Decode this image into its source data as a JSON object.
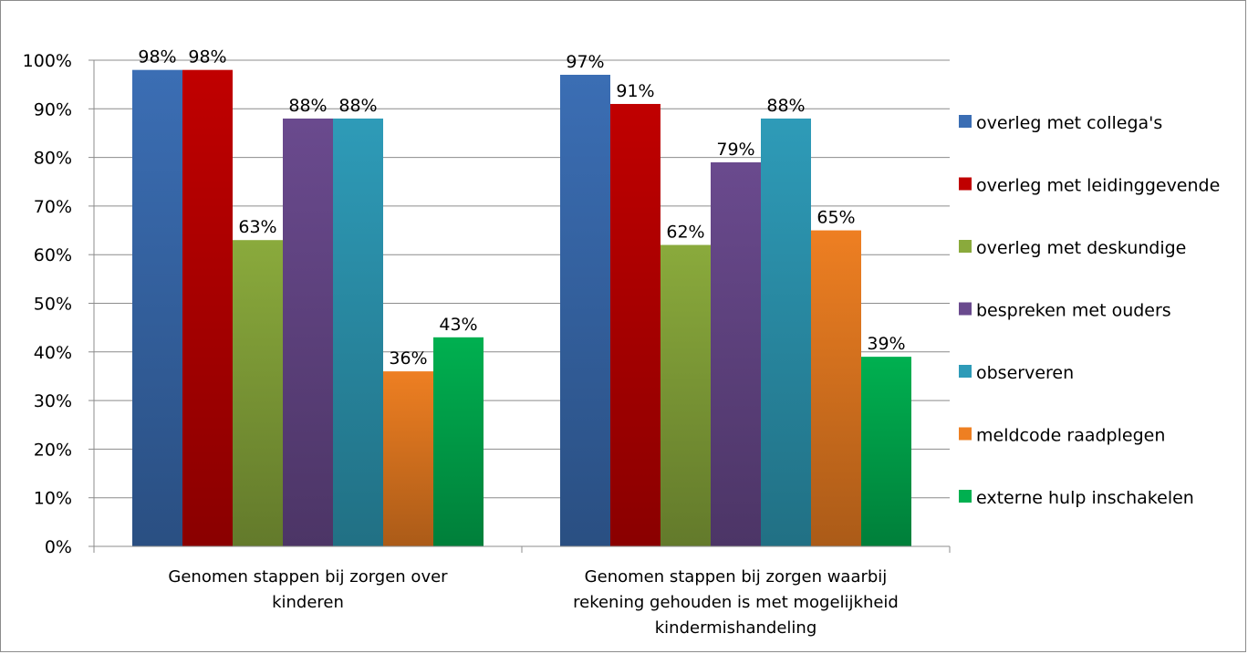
{
  "chart_data": {
    "type": "bar",
    "categories": [
      [
        "Genomen stappen bij zorgen over",
        "kinderen"
      ],
      [
        "Genomen stappen bij zorgen waarbij",
        "rekening gehouden is met mogelijkheid",
        "kindermishandeling"
      ]
    ],
    "series": [
      {
        "name": "overleg met collega's",
        "values": [
          98,
          97
        ],
        "color": "#3b6eb4",
        "labels": [
          "98%",
          "97%"
        ]
      },
      {
        "name": "overleg met leidinggevende",
        "values": [
          98,
          91
        ],
        "color": "#c00000",
        "labels": [
          "98%",
          "91%"
        ]
      },
      {
        "name": "overleg met deskundige",
        "values": [
          63,
          62
        ],
        "color": "#8aaa3c",
        "labels": [
          "63%",
          "62%"
        ]
      },
      {
        "name": "bespreken met ouders",
        "values": [
          88,
          79
        ],
        "color": "#6a4a8e",
        "labels": [
          "88%",
          "79%"
        ]
      },
      {
        "name": "observeren",
        "values": [
          88,
          88
        ],
        "color": "#2e9bb8",
        "labels": [
          "88%",
          "88%"
        ]
      },
      {
        "name": "meldcode raadplegen",
        "values": [
          36,
          65
        ],
        "color": "#ee7f22",
        "labels": [
          "36%",
          "65%"
        ]
      },
      {
        "name": "externe hulp inschakelen",
        "values": [
          43,
          39
        ],
        "color": "#00b050",
        "labels": [
          "43%",
          "39%"
        ]
      }
    ],
    "ylim": [
      0,
      100
    ],
    "yticks": [
      0,
      10,
      20,
      30,
      40,
      50,
      60,
      70,
      80,
      90,
      100
    ],
    "ytick_labels": [
      "0%",
      "10%",
      "20%",
      "30%",
      "40%",
      "50%",
      "60%",
      "70%",
      "80%",
      "90%",
      "100%"
    ],
    "grid": true,
    "legend": "right"
  }
}
